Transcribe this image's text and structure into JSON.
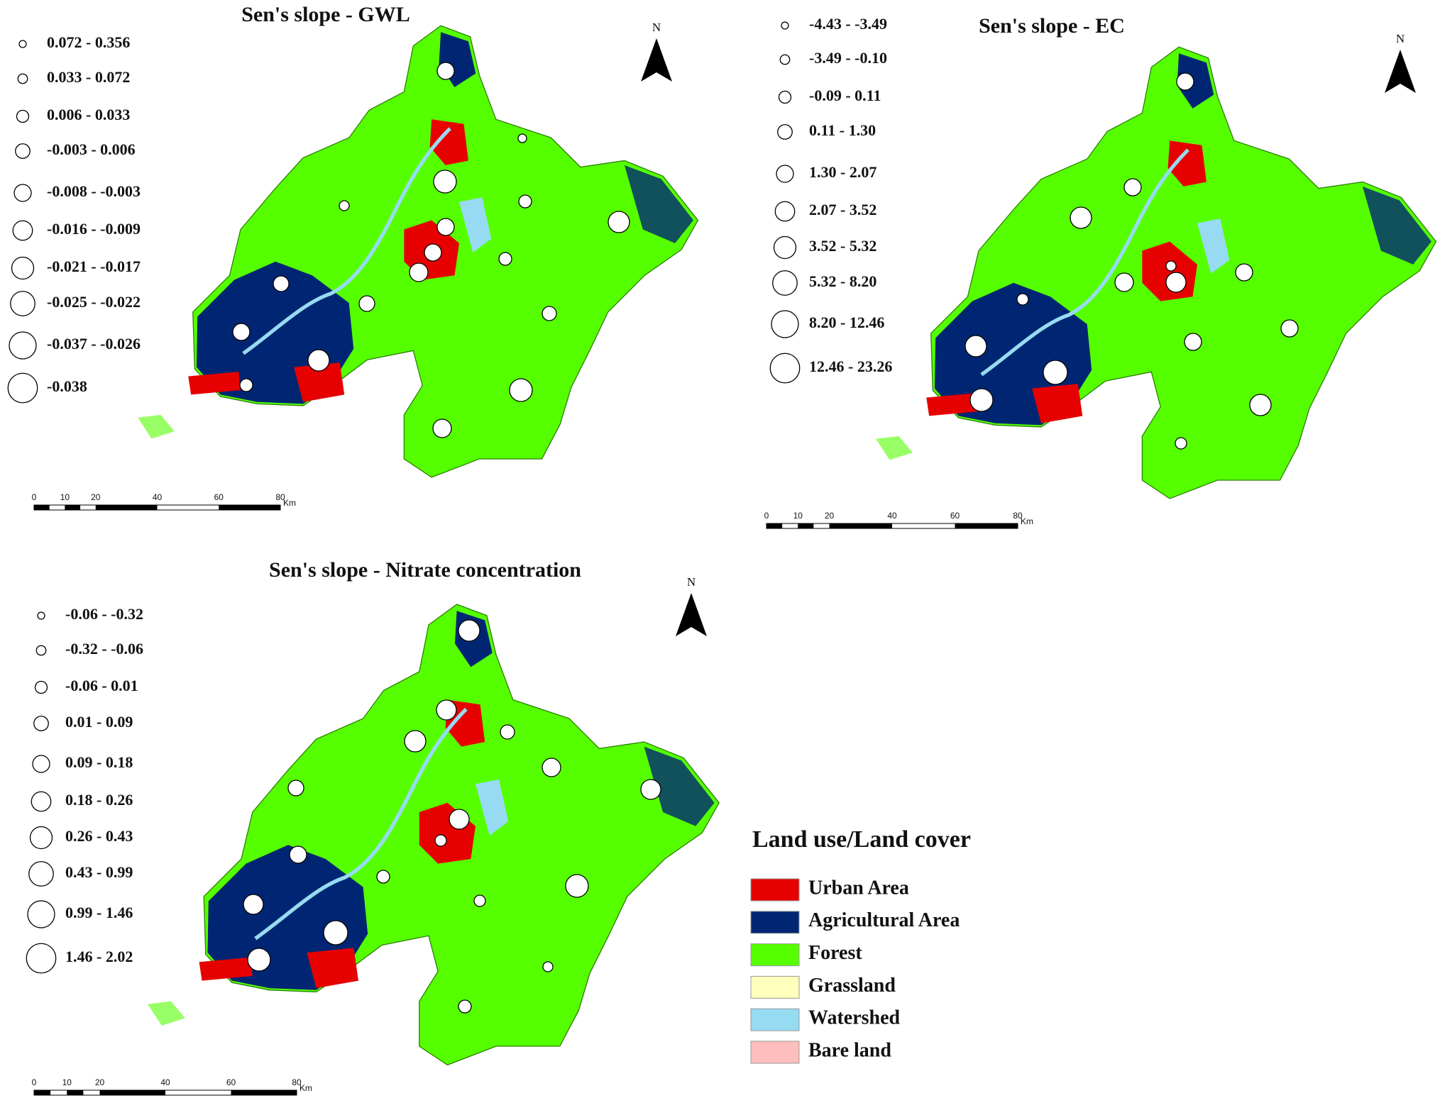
{
  "maps": [
    {
      "title": "Sen's slope - GWL",
      "legend": [
        "0.072 - 0.356",
        "0.033 - 0.072",
        "0.006 - 0.033",
        "-0.003 - 0.006",
        "-0.008 - -0.003",
        "-0.016 - -0.009",
        "-0.021 - -0.017",
        "-0.025 - -0.022",
        "-0.037 - -0.026",
        "-0.038"
      ],
      "north": "N",
      "scale_labels": [
        0,
        10,
        20,
        40,
        60,
        80
      ],
      "scale_unit": "Km"
    },
    {
      "title": "Sen's slope - EC",
      "legend": [
        "-4.43 - -3.49",
        "-3.49 - -0.10",
        "-0.09 - 0.11",
        "0.11 - 1.30",
        "1.30 - 2.07",
        "2.07 - 3.52",
        "3.52 - 5.32",
        "5.32 - 8.20",
        "8.20 - 12.46",
        "12.46 - 23.26"
      ],
      "north": "N",
      "scale_labels": [
        0,
        10,
        20,
        40,
        60,
        80
      ],
      "scale_unit": "Km"
    },
    {
      "title": "Sen's slope - Nitrate concentration",
      "legend": [
        "-0.06 - -0.32",
        "-0.32 - -0.06",
        "-0.06 - 0.01",
        "0.01 - 0.09",
        "0.09 - 0.18",
        "0.18 - 0.26",
        "0.26 - 0.43",
        "0.43 - 0.99",
        "0.99 - 1.46",
        "1.46 - 2.02"
      ],
      "north": "N",
      "scale_labels": [
        0,
        10,
        20,
        40,
        60,
        80
      ],
      "scale_unit": "Km"
    }
  ],
  "land_cover": {
    "title": "Land use/Land cover",
    "items": [
      {
        "label": "Urban Area",
        "color": "#e60000"
      },
      {
        "label": "Agricultural Area",
        "color": "#002673"
      },
      {
        "label": "Forest",
        "color": "#55ff00"
      },
      {
        "label": "Grassland",
        "color": "#ffffbe"
      },
      {
        "label": "Watershed",
        "color": "#97dbf2"
      },
      {
        "label": "Bare land",
        "color": "#ffbebe"
      }
    ]
  }
}
